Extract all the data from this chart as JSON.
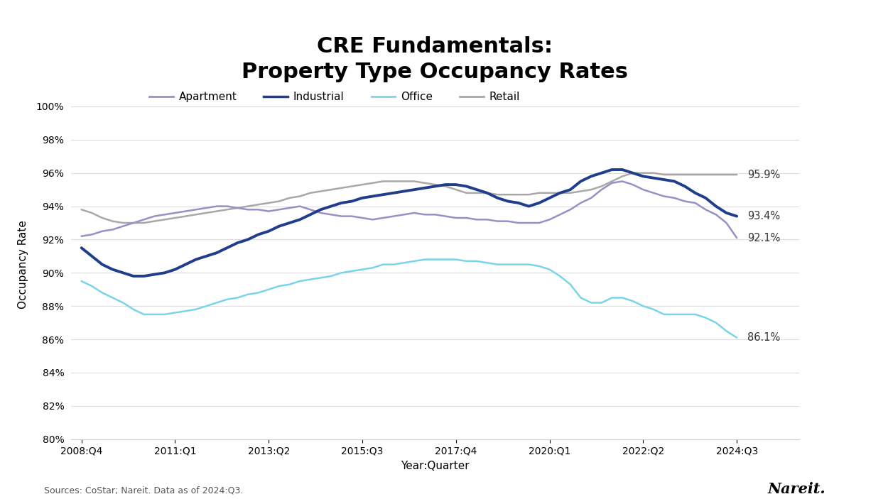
{
  "title": "CRE Fundamentals:\nProperty Type Occupancy Rates",
  "xlabel": "Year:Quarter",
  "ylabel": "Occupancy Rate",
  "source_text": "Sources: CoStar; Nareit. Data as of 2024:Q3.",
  "nareit_text": "Nareit.",
  "ylim": [
    80,
    101
  ],
  "yticks": [
    80,
    82,
    84,
    86,
    88,
    90,
    92,
    94,
    96,
    98,
    100
  ],
  "end_labels": {
    "Retail": "95.9%",
    "Industrial": "93.4%",
    "Apartment": "92.1%",
    "Office": "86.1%"
  },
  "colors": {
    "Apartment": "#9b8ec4",
    "Industrial": "#1f3d8c",
    "Office": "#7ad4e8",
    "Retail": "#a8a8a8"
  },
  "linewidths": {
    "Apartment": 1.8,
    "Industrial": 2.8,
    "Office": 1.8,
    "Retail": 1.8
  },
  "series": {
    "Apartment": [
      92.2,
      92.3,
      92.5,
      92.6,
      92.8,
      93.0,
      93.2,
      93.4,
      93.5,
      93.6,
      93.7,
      93.8,
      93.9,
      94.0,
      94.0,
      93.9,
      93.8,
      93.8,
      93.7,
      93.8,
      93.9,
      94.0,
      93.8,
      93.6,
      93.5,
      93.4,
      93.4,
      93.3,
      93.2,
      93.3,
      93.4,
      93.5,
      93.6,
      93.5,
      93.5,
      93.4,
      93.3,
      93.3,
      93.2,
      93.2,
      93.1,
      93.1,
      93.0,
      93.0,
      93.0,
      93.2,
      93.5,
      93.8,
      94.2,
      94.5,
      95.0,
      95.4,
      95.5,
      95.3,
      95.0,
      94.8,
      94.6,
      94.5,
      94.3,
      94.2,
      93.8,
      93.5,
      93.0,
      92.1
    ],
    "Industrial": [
      91.5,
      91.0,
      90.5,
      90.2,
      90.0,
      89.8,
      89.8,
      89.9,
      90.0,
      90.2,
      90.5,
      90.8,
      91.0,
      91.2,
      91.5,
      91.8,
      92.0,
      92.3,
      92.5,
      92.8,
      93.0,
      93.2,
      93.5,
      93.8,
      94.0,
      94.2,
      94.3,
      94.5,
      94.6,
      94.7,
      94.8,
      94.9,
      95.0,
      95.1,
      95.2,
      95.3,
      95.3,
      95.2,
      95.0,
      94.8,
      94.5,
      94.3,
      94.2,
      94.0,
      94.2,
      94.5,
      94.8,
      95.0,
      95.5,
      95.8,
      96.0,
      96.2,
      96.2,
      96.0,
      95.8,
      95.7,
      95.6,
      95.5,
      95.2,
      94.8,
      94.5,
      94.0,
      93.6,
      93.4
    ],
    "Office": [
      89.5,
      89.2,
      88.8,
      88.5,
      88.2,
      87.8,
      87.5,
      87.5,
      87.5,
      87.6,
      87.7,
      87.8,
      88.0,
      88.2,
      88.4,
      88.5,
      88.7,
      88.8,
      89.0,
      89.2,
      89.3,
      89.5,
      89.6,
      89.7,
      89.8,
      90.0,
      90.1,
      90.2,
      90.3,
      90.5,
      90.5,
      90.6,
      90.7,
      90.8,
      90.8,
      90.8,
      90.8,
      90.7,
      90.7,
      90.6,
      90.5,
      90.5,
      90.5,
      90.5,
      90.4,
      90.2,
      89.8,
      89.3,
      88.5,
      88.2,
      88.2,
      88.5,
      88.5,
      88.3,
      88.0,
      87.8,
      87.5,
      87.5,
      87.5,
      87.5,
      87.3,
      87.0,
      86.5,
      86.1
    ],
    "Retail": [
      93.8,
      93.6,
      93.3,
      93.1,
      93.0,
      93.0,
      93.0,
      93.1,
      93.2,
      93.3,
      93.4,
      93.5,
      93.6,
      93.7,
      93.8,
      93.9,
      94.0,
      94.1,
      94.2,
      94.3,
      94.5,
      94.6,
      94.8,
      94.9,
      95.0,
      95.1,
      95.2,
      95.3,
      95.4,
      95.5,
      95.5,
      95.5,
      95.5,
      95.4,
      95.3,
      95.2,
      95.0,
      94.8,
      94.8,
      94.8,
      94.7,
      94.7,
      94.7,
      94.7,
      94.8,
      94.8,
      94.8,
      94.8,
      94.9,
      95.0,
      95.2,
      95.5,
      95.8,
      96.0,
      96.0,
      96.0,
      95.9,
      95.9,
      95.9,
      95.9,
      95.9,
      95.9,
      95.9,
      95.9
    ]
  }
}
